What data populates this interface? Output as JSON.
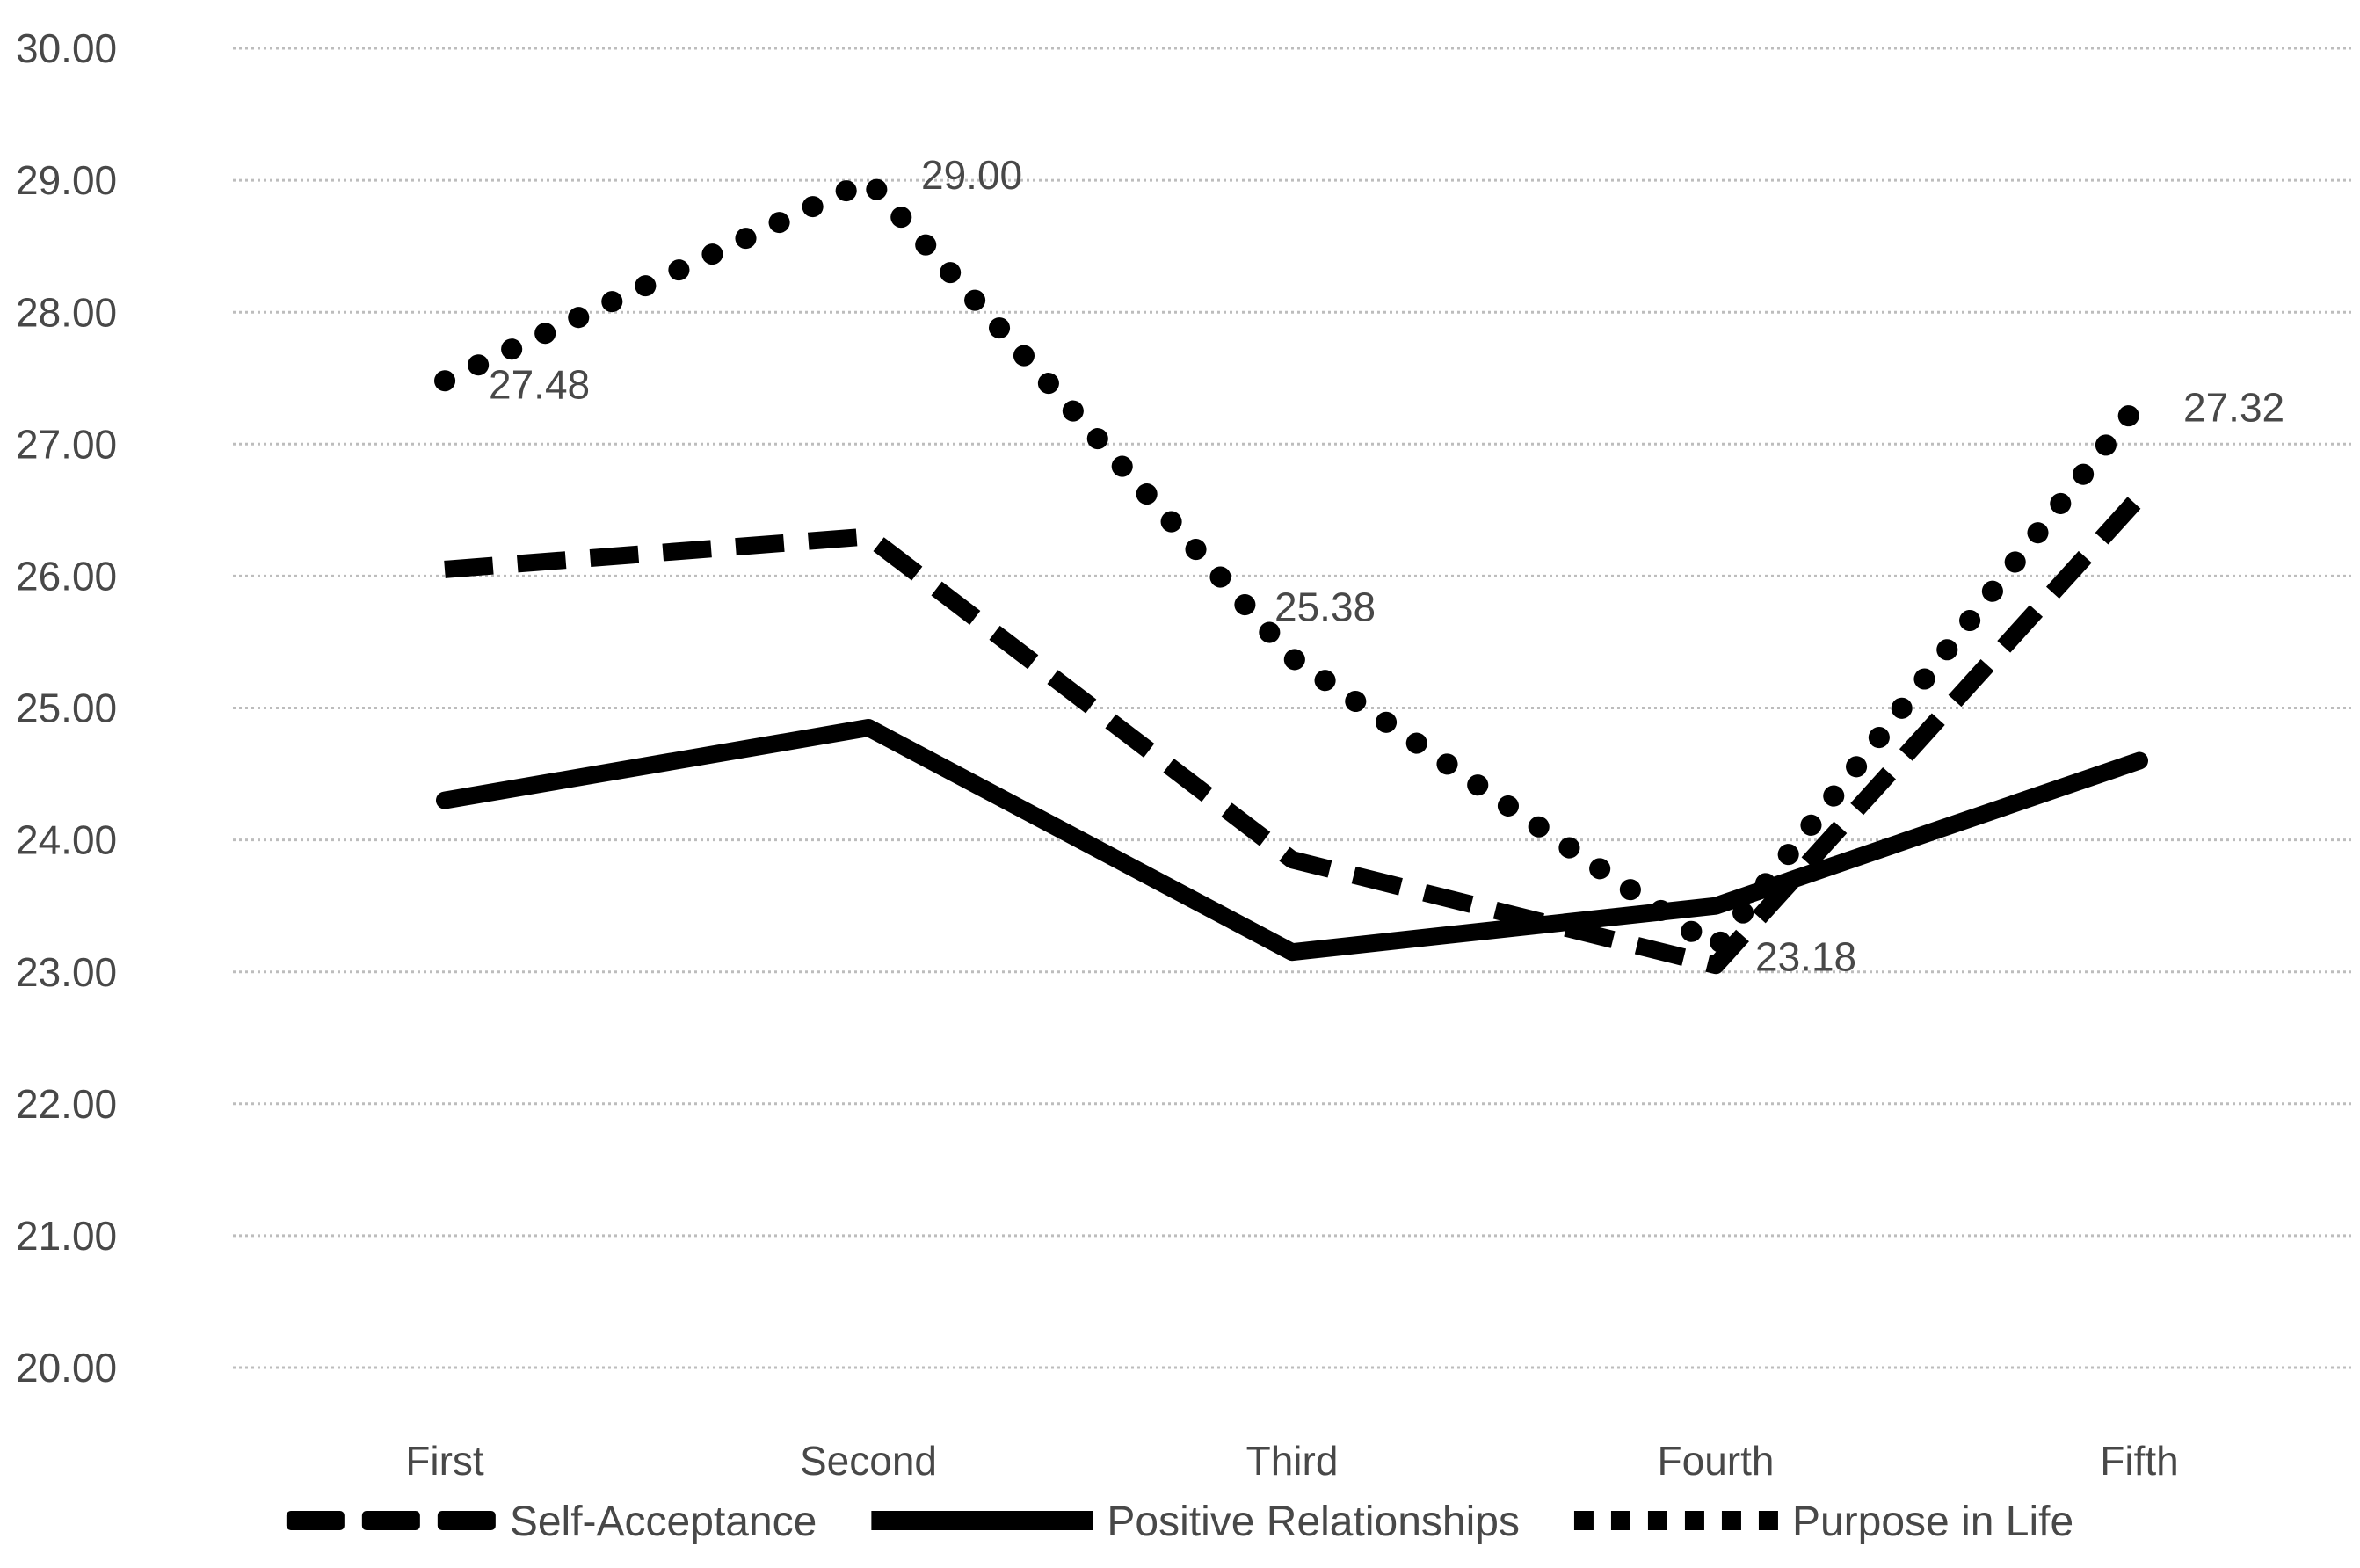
{
  "chart_data": {
    "type": "line",
    "title": "",
    "categories": [
      "First",
      "Second",
      "Third",
      "Fourth",
      "Fifth"
    ],
    "series": [
      {
        "name": "Self-Acceptance",
        "style": "dashed",
        "color": "#000000",
        "values": [
          26.05,
          26.3,
          23.85,
          23.05,
          26.6
        ],
        "labeled": false
      },
      {
        "name": "Positive Relationships",
        "style": "solid",
        "color": "#000000",
        "values": [
          24.3,
          24.85,
          23.15,
          23.5,
          24.6
        ],
        "labeled": false
      },
      {
        "name": "Purpose in Life",
        "style": "dotted",
        "color": "#000000",
        "values": [
          27.48,
          29.0,
          25.38,
          23.18,
          27.32
        ],
        "labeled": true,
        "data_labels": [
          "27.48",
          "29.00",
          "25.38",
          "23.18",
          "27.32"
        ]
      }
    ],
    "y_axis": {
      "min": 20,
      "max": 30,
      "tick_step": 1,
      "tick_labels": [
        "30.00",
        "29.00",
        "28.00",
        "27.00",
        "26.00",
        "25.00",
        "24.00",
        "23.00",
        "22.00",
        "21.00",
        "20.00"
      ]
    },
    "x_axis": {
      "labels": [
        "First",
        "Second",
        "Third",
        "Fourth",
        "Fifth"
      ]
    },
    "legend": {
      "position": "bottom",
      "entries": [
        {
          "label": "Self-Acceptance",
          "marker": "dashed"
        },
        {
          "label": "Positive Relationships",
          "marker": "solid"
        },
        {
          "label": "Purpose in Life",
          "marker": "dotted"
        }
      ]
    },
    "grid": true,
    "colors": {
      "line": "#000000",
      "text": "#484848",
      "gridline": "#bdbdbd",
      "background": "#ffffff"
    }
  }
}
